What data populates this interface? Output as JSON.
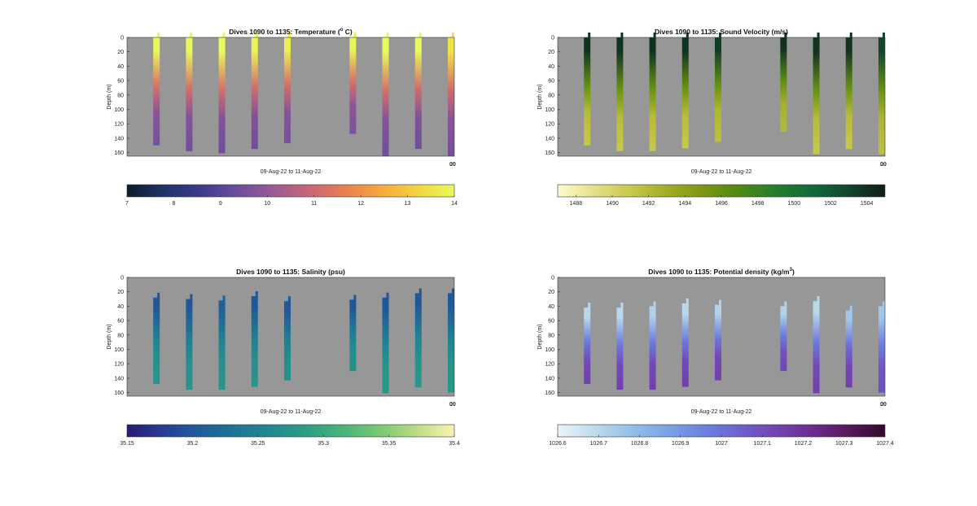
{
  "chart_data": [
    {
      "type": "heatmap",
      "title_main": "Dives 1090 to 1135: Temperature (",
      "title_sup": "o",
      "title_rest": " C)",
      "xlabel": "09-Aug-22 to 11-Aug-22",
      "ylabel": "Depth (m)",
      "x_tick_labels": [
        "09",
        "10"
      ],
      "y_ticks": [
        0,
        20,
        40,
        60,
        80,
        100,
        120,
        140,
        160
      ],
      "ylim": [
        0,
        165
      ],
      "y_reversed": true,
      "background_color": "#979797",
      "colormap": [
        "#0c1a2c",
        "#1f3468",
        "#3c3a8e",
        "#6b4d9c",
        "#9a5a96",
        "#c86677",
        "#e9804f",
        "#f6a93e",
        "#f3d53f",
        "#e8fa5b"
      ],
      "colorbar": {
        "min": 7,
        "max": 14,
        "ticks": [
          7,
          8,
          9,
          10,
          11,
          12,
          13,
          14
        ]
      },
      "dives": [
        {
          "x": 0.09,
          "max_depth": 150,
          "surface": 14,
          "bottom": 9.5
        },
        {
          "x": 0.19,
          "max_depth": 158,
          "surface": 14,
          "bottom": 9.4
        },
        {
          "x": 0.29,
          "max_depth": 161,
          "surface": 14,
          "bottom": 9.4
        },
        {
          "x": 0.39,
          "max_depth": 155,
          "surface": 13.9,
          "bottom": 9.4
        },
        {
          "x": 0.49,
          "max_depth": 147,
          "surface": 13.8,
          "bottom": 9.5
        },
        {
          "x": 0.69,
          "max_depth": 134,
          "surface": 13.9,
          "bottom": 9.6
        },
        {
          "x": 0.79,
          "max_depth": 165,
          "surface": 14,
          "bottom": 9.4
        },
        {
          "x": 0.89,
          "max_depth": 155,
          "surface": 14,
          "bottom": 9.4
        },
        {
          "x": 0.99,
          "max_depth": 165,
          "surface": 13.5,
          "bottom": 9.5
        }
      ]
    },
    {
      "type": "heatmap",
      "title_main": "Dives 1090 to 1135: Sound Velocity (m/s)",
      "title_sup": "",
      "title_rest": "",
      "xlabel": "09-Aug-22 to 11-Aug-22",
      "ylabel": "Depth (m)",
      "x_tick_labels": [
        "09",
        "10"
      ],
      "y_ticks": [
        0,
        20,
        40,
        60,
        80,
        100,
        120,
        140,
        160
      ],
      "ylim": [
        0,
        165
      ],
      "y_reversed": true,
      "background_color": "#979797",
      "colormap": [
        "#fefccf",
        "#e5e08a",
        "#c8c84a",
        "#a2ad25",
        "#7c9712",
        "#4e8a12",
        "#247e2c",
        "#126a3a",
        "#11472d",
        "#111d14"
      ],
      "colorbar": {
        "min": 1487,
        "max": 1505,
        "ticks": [
          1488,
          1490,
          1492,
          1494,
          1496,
          1498,
          1500,
          1502,
          1504
        ]
      },
      "dives": [
        {
          "x": 0.09,
          "max_depth": 150,
          "surface": 1504,
          "bottom": 1491
        },
        {
          "x": 0.19,
          "max_depth": 158,
          "surface": 1504,
          "bottom": 1491
        },
        {
          "x": 0.29,
          "max_depth": 158,
          "surface": 1504,
          "bottom": 1491
        },
        {
          "x": 0.39,
          "max_depth": 154,
          "surface": 1504,
          "bottom": 1491
        },
        {
          "x": 0.49,
          "max_depth": 145,
          "surface": 1503.5,
          "bottom": 1491.5
        },
        {
          "x": 0.69,
          "max_depth": 131,
          "surface": 1504,
          "bottom": 1492
        },
        {
          "x": 0.79,
          "max_depth": 162,
          "surface": 1504,
          "bottom": 1491
        },
        {
          "x": 0.89,
          "max_depth": 155,
          "surface": 1504,
          "bottom": 1491
        },
        {
          "x": 0.99,
          "max_depth": 162,
          "surface": 1503,
          "bottom": 1491.5
        }
      ]
    },
    {
      "type": "heatmap",
      "title_main": "Dives 1090 to 1135: Salinity (psu)",
      "title_sup": "",
      "title_rest": "",
      "xlabel": "09-Aug-22 to 11-Aug-22",
      "ylabel": "Depth (m)",
      "x_tick_labels": [
        "09",
        "10"
      ],
      "y_ticks": [
        0,
        20,
        40,
        60,
        80,
        100,
        120,
        140,
        160
      ],
      "ylim": [
        0,
        165
      ],
      "y_reversed": true,
      "background_color": "#979797",
      "colormap": [
        "#2a1a6e",
        "#273d97",
        "#1f5d9a",
        "#1e7496",
        "#23898f",
        "#2e9e86",
        "#4db47a",
        "#7ec873",
        "#bedd85",
        "#fbf3b5"
      ],
      "colorbar": {
        "min": 35.15,
        "max": 35.4,
        "ticks": [
          35.15,
          35.2,
          35.25,
          35.3,
          35.35,
          35.4
        ]
      },
      "dives": [
        {
          "x": 0.09,
          "min_depth": 28,
          "max_depth": 148,
          "surface": 35.2,
          "bottom": 35.275
        },
        {
          "x": 0.19,
          "min_depth": 30,
          "max_depth": 156,
          "surface": 35.2,
          "bottom": 35.275
        },
        {
          "x": 0.29,
          "min_depth": 32,
          "max_depth": 156,
          "surface": 35.21,
          "bottom": 35.275
        },
        {
          "x": 0.39,
          "min_depth": 26,
          "max_depth": 152,
          "surface": 35.2,
          "bottom": 35.275
        },
        {
          "x": 0.49,
          "min_depth": 33,
          "max_depth": 143,
          "surface": 35.2,
          "bottom": 35.27
        },
        {
          "x": 0.69,
          "min_depth": 31,
          "max_depth": 130,
          "surface": 35.2,
          "bottom": 35.27
        },
        {
          "x": 0.79,
          "min_depth": 28,
          "max_depth": 161,
          "surface": 35.2,
          "bottom": 35.28
        },
        {
          "x": 0.89,
          "min_depth": 22,
          "max_depth": 153,
          "surface": 35.2,
          "bottom": 35.28
        },
        {
          "x": 0.99,
          "min_depth": 22,
          "max_depth": 160,
          "surface": 35.2,
          "bottom": 35.28
        }
      ]
    },
    {
      "type": "heatmap",
      "title_main": "Dives 1090 to 1135: Potential density (kg/m",
      "title_sup": "3",
      "title_rest": ")",
      "xlabel": "09-Aug-22 to 11-Aug-22",
      "ylabel": "Depth (m)",
      "x_tick_labels": [
        "09",
        "10"
      ],
      "y_ticks": [
        0,
        20,
        40,
        60,
        80,
        100,
        120,
        140,
        160
      ],
      "ylim": [
        0,
        165
      ],
      "y_reversed": true,
      "background_color": "#979797",
      "colormap": [
        "#e9f5f8",
        "#bfdcec",
        "#94c0e8",
        "#7aa4e4",
        "#6c82e0",
        "#6f61ce",
        "#7344b2",
        "#6c2c8f",
        "#56195c",
        "#300b2d"
      ],
      "colorbar": {
        "min": 1026.6,
        "max": 1027.4,
        "ticks": [
          1026.6,
          1026.7,
          1026.8,
          1026.9,
          1027,
          1027.1,
          1027.2,
          1027.3,
          1027.4
        ]
      },
      "dives": [
        {
          "x": 0.09,
          "min_depth": 42,
          "max_depth": 148,
          "surface": 1026.7,
          "bottom": 1027.15
        },
        {
          "x": 0.19,
          "min_depth": 42,
          "max_depth": 156,
          "surface": 1026.7,
          "bottom": 1027.15
        },
        {
          "x": 0.29,
          "min_depth": 40,
          "max_depth": 156,
          "surface": 1026.72,
          "bottom": 1027.15
        },
        {
          "x": 0.39,
          "min_depth": 36,
          "max_depth": 152,
          "surface": 1026.7,
          "bottom": 1027.15
        },
        {
          "x": 0.49,
          "min_depth": 38,
          "max_depth": 143,
          "surface": 1026.72,
          "bottom": 1027.15
        },
        {
          "x": 0.69,
          "min_depth": 40,
          "max_depth": 130,
          "surface": 1026.72,
          "bottom": 1027.12
        },
        {
          "x": 0.79,
          "min_depth": 33,
          "max_depth": 161,
          "surface": 1026.7,
          "bottom": 1027.15
        },
        {
          "x": 0.89,
          "min_depth": 46,
          "max_depth": 153,
          "surface": 1026.75,
          "bottom": 1027.15
        },
        {
          "x": 0.99,
          "min_depth": 40,
          "max_depth": 160,
          "surface": 1026.75,
          "bottom": 1027.1
        }
      ]
    }
  ]
}
